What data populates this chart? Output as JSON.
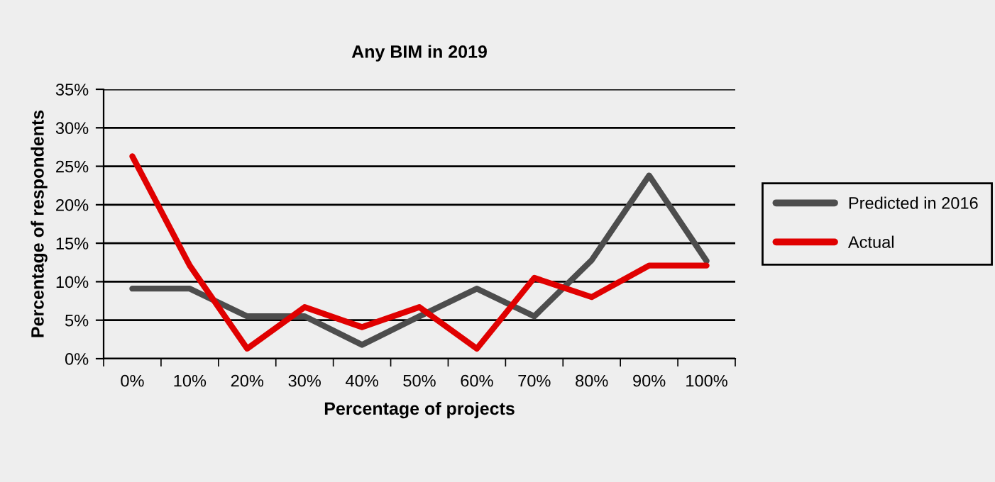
{
  "chart_data": {
    "type": "line",
    "title": "Any BIM in 2019",
    "xlabel": "Percentage of projects",
    "ylabel": "Percentage of respondents",
    "categories": [
      "0%",
      "10%",
      "20%",
      "30%",
      "40%",
      "50%",
      "60%",
      "70%",
      "80%",
      "90%",
      "100%"
    ],
    "series": [
      {
        "name": "Predicted in 2016",
        "color": "#4d4d4d",
        "values": [
          9.1,
          9.1,
          5.5,
          5.5,
          1.8,
          5.5,
          9.1,
          5.5,
          12.8,
          23.8,
          12.7
        ]
      },
      {
        "name": "Actual",
        "color": "#e00000",
        "values": [
          26.3,
          12.1,
          1.3,
          6.7,
          4.1,
          6.7,
          1.3,
          10.5,
          8.0,
          12.1,
          12.1
        ]
      }
    ],
    "ylim": [
      0,
      35
    ],
    "yticks": [
      {
        "value": 0,
        "label": "0%"
      },
      {
        "value": 5,
        "label": "5%"
      },
      {
        "value": 10,
        "label": "10%"
      },
      {
        "value": 15,
        "label": "15%"
      },
      {
        "value": 20,
        "label": "20%"
      },
      {
        "value": 25,
        "label": "25%"
      },
      {
        "value": 30,
        "label": "30%"
      },
      {
        "value": 35,
        "label": "35%"
      }
    ],
    "grid": "y",
    "legend": "right",
    "marker": "none",
    "line_style": "solid"
  }
}
